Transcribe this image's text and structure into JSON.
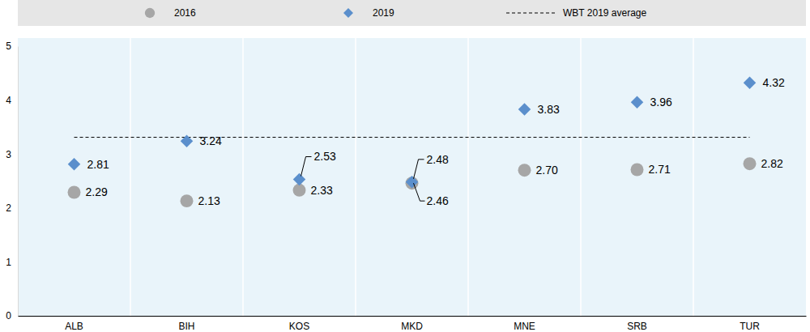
{
  "chart_data": {
    "type": "scatter",
    "categories": [
      "ALB",
      "BIH",
      "KOS",
      "MKD",
      "MNE",
      "SRB",
      "TUR"
    ],
    "series": [
      {
        "name": "2016",
        "color": "#a6a6a6",
        "marker": "circle",
        "data_labels": true,
        "values": [
          2.29,
          2.13,
          2.33,
          2.46,
          2.7,
          2.71,
          2.82
        ],
        "value_labels": [
          "2.29",
          "2.13",
          "2.33",
          "2.46",
          "2.70",
          "2.71",
          "2.82"
        ]
      },
      {
        "name": "2019",
        "color": "#5b8fcc",
        "marker": "diamond",
        "data_labels": true,
        "values": [
          2.81,
          3.24,
          2.53,
          2.48,
          3.83,
          3.96,
          4.32
        ],
        "value_labels": [
          "2.81",
          "3.24",
          "2.53",
          "2.48",
          "3.83",
          "3.96",
          "4.32"
        ]
      },
      {
        "name": "WBT 2019 average",
        "type": "line",
        "line_style": "dashed",
        "color": "#000000",
        "data_labels": false,
        "values": [
          3.31,
          3.31,
          3.31,
          3.31,
          3.31,
          3.31,
          3.31
        ]
      }
    ],
    "ylim": [
      0,
      5
    ],
    "yticks": [
      0,
      1,
      2,
      3,
      4,
      5
    ],
    "grid": false,
    "legend": "top"
  }
}
